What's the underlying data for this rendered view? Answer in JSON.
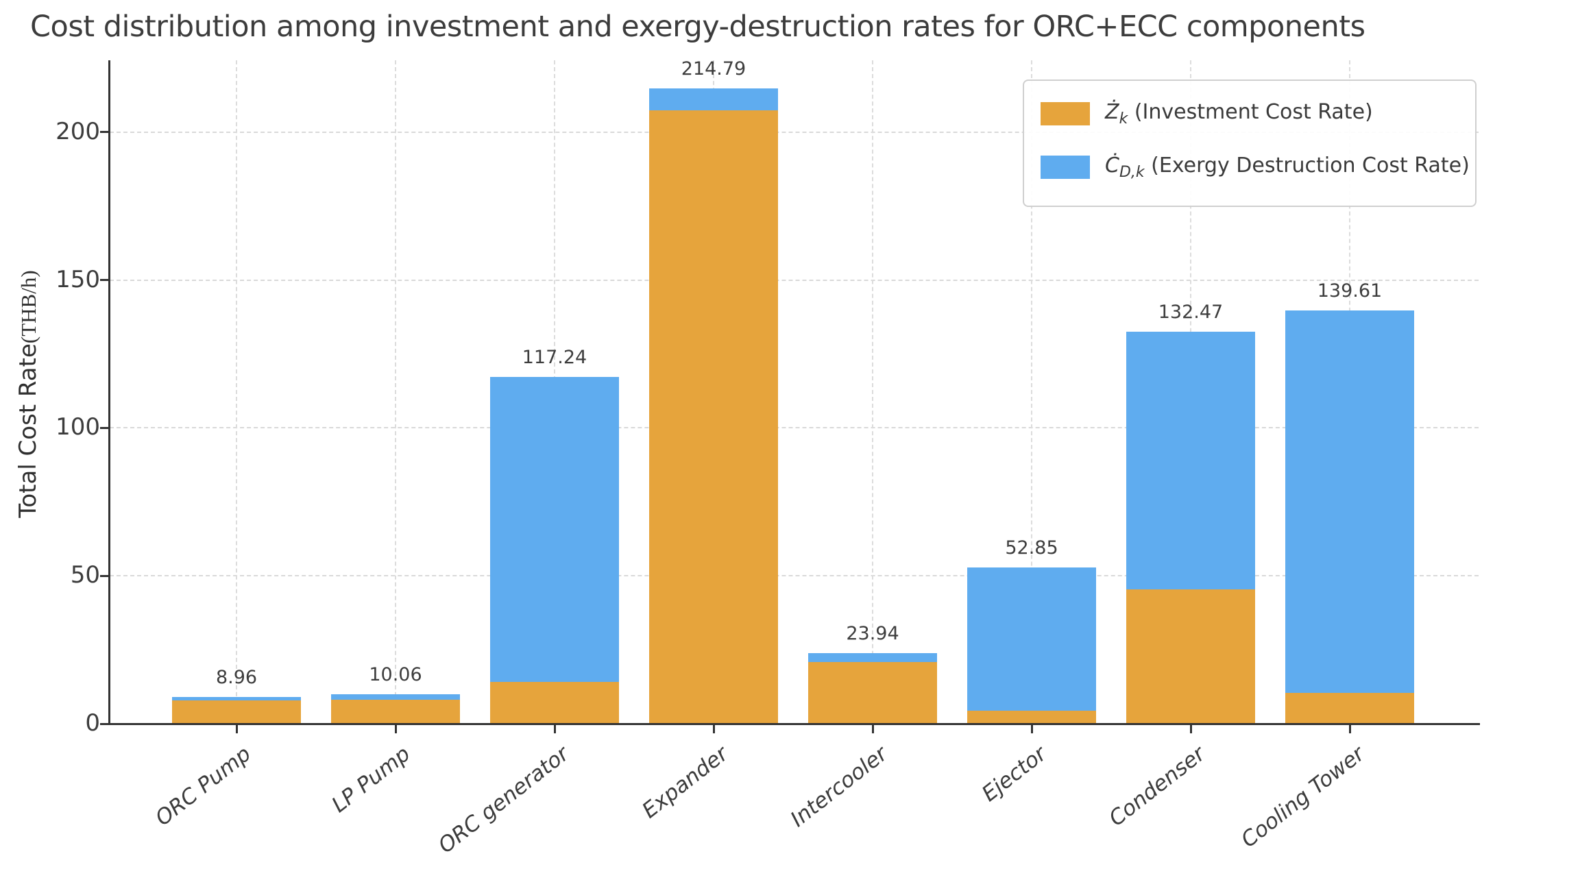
{
  "title": "Cost distribution among investment and exergy-destruction rates for ORC+ECC components",
  "y_axis": {
    "label_main": "Total Cost Rate",
    "label_unit": "(THB/h)",
    "tick_labels": [
      "0",
      "50",
      "100",
      "150",
      "200"
    ]
  },
  "legend": {
    "entries": [
      {
        "symbol": "Ż",
        "subscript": "k",
        "label": " (Investment Cost Rate)",
        "color": "#E6A43C"
      },
      {
        "symbol": "Ċ",
        "subscript": "D,k",
        "label": " (Exergy Destruction Cost Rate)",
        "color": "#5FACEF"
      }
    ]
  },
  "chart_data": {
    "type": "bar",
    "stacked": true,
    "title": "Cost distribution among investment and exergy-destruction rates for ORC+ECC components",
    "xlabel": "",
    "ylabel": "Total Cost Rate(THB/h)",
    "categories": [
      "ORC Pump",
      "LP Pump",
      "ORC generator",
      "Expander",
      "Intercooler",
      "Ejector",
      "Condenser",
      "Cooling Tower"
    ],
    "series": [
      {
        "name": "Z_k (Investment Cost Rate)",
        "color": "#E6A43C",
        "values": [
          7.88,
          8.2,
          14.2,
          207.3,
          20.9,
          4.33,
          45.5,
          10.52
        ]
      },
      {
        "name": "C_D,k (Exergy Destruction Cost Rate)",
        "color": "#5FACEF",
        "values": [
          1.08,
          1.86,
          103.04,
          7.49,
          3.04,
          48.52,
          86.97,
          129.09
        ]
      }
    ],
    "totals": [
      8.96,
      10.06,
      117.24,
      214.79,
      23.94,
      52.85,
      132.47,
      139.61
    ],
    "total_labels": [
      "8.96",
      "10.06",
      "117.24",
      "214.79",
      "23.94",
      "52.85",
      "132.47",
      "139.61"
    ],
    "ylim": [
      0,
      223
    ],
    "yticks": [
      0,
      50,
      100,
      150,
      200
    ],
    "grid": true,
    "grid_style": "dashed",
    "legend_position": "upper right"
  },
  "colors": {
    "investment": "#E6A43C",
    "exergy_destruction": "#5FACEF",
    "grid": "#d9d9d9",
    "spine": "#333333",
    "text": "#3b3b3b",
    "background": "#ffffff"
  }
}
